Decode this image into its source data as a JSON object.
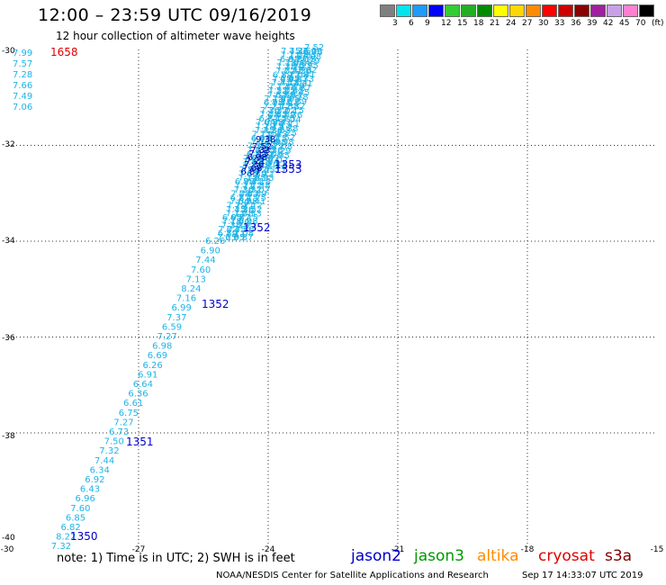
{
  "title": "12:00 – 23:59 UTC 09/16/2019",
  "subtitle": "12 hour collection of altimeter wave heights",
  "legend": {
    "colors": [
      "#808080",
      "#00e5ee",
      "#1e9bff",
      "#0000ff",
      "#32cd32",
      "#22b022",
      "#008b00",
      "#ffff00",
      "#ffd700",
      "#ff8c00",
      "#ff0000",
      "#cd0000",
      "#8b0000",
      "#a020a0",
      "#c8a0e8",
      "#ff80d0",
      "#000000"
    ],
    "levels": [
      "3",
      "6",
      "9",
      "12",
      "15",
      "18",
      "21",
      "24",
      "27",
      "30",
      "33",
      "36",
      "39",
      "42",
      "45",
      "70",
      "(ft)"
    ]
  },
  "x_ticks": [
    "-30",
    "-27",
    "-24",
    "-21",
    "-18",
    "-15"
  ],
  "y_ticks": [
    "-30",
    "-32",
    "-34",
    "-36",
    "-38",
    "-40"
  ],
  "corner_values": [
    "7.99",
    "7.57",
    "7.28",
    "7.66",
    "7.49",
    "7.06"
  ],
  "pass_labels": [
    {
      "text": "1658",
      "color": "#e00000"
    },
    {
      "text": "1353",
      "color": "#0000cc"
    },
    {
      "text": "1353",
      "color": "#0000cc"
    },
    {
      "text": "1352",
      "color": "#0000cc"
    },
    {
      "text": "1352",
      "color": "#0000cc"
    },
    {
      "text": "1351",
      "color": "#0000cc"
    },
    {
      "text": "1350",
      "color": "#0000cc"
    }
  ],
  "track_values": [
    "6.26",
    "6.90",
    "7.44",
    "7.60",
    "7.13",
    "8.24",
    "7.16",
    "6.99",
    "7.37",
    "6.59",
    "7.27",
    "6.98",
    "6.69",
    "6.26",
    "6.91",
    "6.64",
    "6.36",
    "6.61",
    "6.75",
    "7.27",
    "6.73",
    "7.50",
    "7.32",
    "7.44",
    "6.34",
    "6.92",
    "6.43",
    "6.96",
    "7.60",
    "6.85",
    "6.82",
    "8.22",
    "7.32"
  ],
  "top_values": [
    "7.40"
  ],
  "dense_track_values": [
    "7.52",
    "7.33",
    "7.15",
    "6.98",
    "7.21",
    "7.36",
    "7.08",
    "6.87",
    "7.04",
    "7.29",
    "7.45",
    "7.11",
    "6.95",
    "7.18",
    "7.38",
    "7.02",
    "6.89",
    "7.25",
    "7.41",
    "7.12"
  ],
  "dark_values": [
    "9.38"
  ],
  "note": "note: 1) Time is in UTC; 2) SWH is in feet",
  "satellites": [
    {
      "name": "jason2",
      "color": "#0000cc"
    },
    {
      "name": "jason3",
      "color": "#009900"
    },
    {
      "name": "altika",
      "color": "#ff8c00"
    },
    {
      "name": "cryosat",
      "color": "#e00000"
    },
    {
      "name": "s3a",
      "color": "#800000"
    }
  ],
  "credit": "NOAA/NESDIS Center for Satellite Applications and Research",
  "timestamp": "Sep 17 14:33:07 UTC 2019"
}
